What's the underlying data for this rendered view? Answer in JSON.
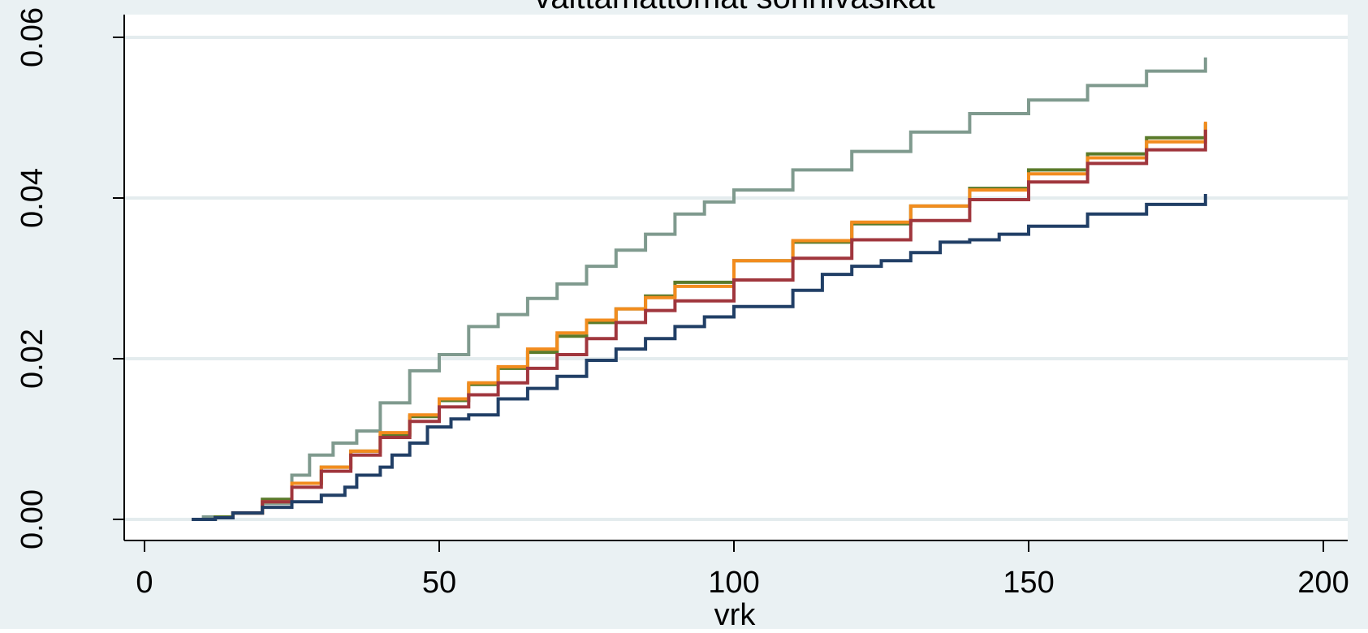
{
  "chart_data": {
    "type": "line",
    "title": "välttämättömät sonhivasikat",
    "xlabel": "vrk",
    "ylabel": "",
    "xlim": [
      0,
      200
    ],
    "ylim": [
      0,
      0.06
    ],
    "xticks": [
      0,
      50,
      100,
      150,
      200
    ],
    "xtick_labels": [
      "0",
      "50",
      "100",
      "150",
      "200"
    ],
    "yticks": [
      0,
      0.02,
      0.04,
      0.06
    ],
    "ytick_labels": [
      "0.00",
      "0.02",
      "0.04",
      "0.06"
    ],
    "grid": "horizontal",
    "legend": "none",
    "colors": {
      "outer_background": "#eaf1f3",
      "plot_background": "#ffffff",
      "grid": "#e4ecee",
      "axis": "#000000"
    },
    "series": [
      {
        "color": "#7f9a8e",
        "points": [
          [
            8,
            0
          ],
          [
            10,
            0.0003
          ],
          [
            15,
            0.0008
          ],
          [
            20,
            0.002
          ],
          [
            25,
            0.0055
          ],
          [
            28,
            0.008
          ],
          [
            32,
            0.0095
          ],
          [
            36,
            0.011
          ],
          [
            40,
            0.0145
          ],
          [
            45,
            0.0185
          ],
          [
            50,
            0.0205
          ],
          [
            55,
            0.024
          ],
          [
            60,
            0.0255
          ],
          [
            65,
            0.0275
          ],
          [
            70,
            0.0293
          ],
          [
            75,
            0.0315
          ],
          [
            80,
            0.0335
          ],
          [
            85,
            0.0355
          ],
          [
            90,
            0.038
          ],
          [
            95,
            0.0395
          ],
          [
            100,
            0.041
          ],
          [
            110,
            0.0435
          ],
          [
            120,
            0.0458
          ],
          [
            130,
            0.0482
          ],
          [
            140,
            0.0505
          ],
          [
            150,
            0.0522
          ],
          [
            160,
            0.054
          ],
          [
            170,
            0.0558
          ],
          [
            180,
            0.0575
          ]
        ]
      },
      {
        "color": "#5a7a2a",
        "points": [
          [
            8,
            0
          ],
          [
            12,
            0.0003
          ],
          [
            15,
            0.0008
          ],
          [
            20,
            0.0025
          ],
          [
            25,
            0.0045
          ],
          [
            30,
            0.0065
          ],
          [
            35,
            0.0085
          ],
          [
            40,
            0.0105
          ],
          [
            45,
            0.0128
          ],
          [
            50,
            0.0148
          ],
          [
            55,
            0.0168
          ],
          [
            60,
            0.0188
          ],
          [
            65,
            0.0208
          ],
          [
            70,
            0.0228
          ],
          [
            75,
            0.0245
          ],
          [
            80,
            0.0262
          ],
          [
            85,
            0.0278
          ],
          [
            90,
            0.0295
          ],
          [
            100,
            0.0322
          ],
          [
            110,
            0.0345
          ],
          [
            120,
            0.0368
          ],
          [
            130,
            0.039
          ],
          [
            140,
            0.0412
          ],
          [
            150,
            0.0435
          ],
          [
            160,
            0.0455
          ],
          [
            170,
            0.0475
          ],
          [
            180,
            0.0493
          ]
        ]
      },
      {
        "color": "#f28c1e",
        "points": [
          [
            8,
            0
          ],
          [
            12,
            0.0002
          ],
          [
            15,
            0.0008
          ],
          [
            20,
            0.0022
          ],
          [
            25,
            0.0045
          ],
          [
            30,
            0.0065
          ],
          [
            35,
            0.0085
          ],
          [
            40,
            0.0108
          ],
          [
            45,
            0.013
          ],
          [
            50,
            0.015
          ],
          [
            55,
            0.017
          ],
          [
            60,
            0.019
          ],
          [
            65,
            0.0212
          ],
          [
            70,
            0.0232
          ],
          [
            75,
            0.0248
          ],
          [
            80,
            0.0262
          ],
          [
            85,
            0.0276
          ],
          [
            90,
            0.029
          ],
          [
            100,
            0.0322
          ],
          [
            110,
            0.0347
          ],
          [
            120,
            0.037
          ],
          [
            130,
            0.039
          ],
          [
            140,
            0.041
          ],
          [
            150,
            0.043
          ],
          [
            160,
            0.045
          ],
          [
            170,
            0.047
          ],
          [
            180,
            0.0495
          ]
        ]
      },
      {
        "color": "#a0363d",
        "points": [
          [
            8,
            0
          ],
          [
            12,
            0.0002
          ],
          [
            15,
            0.0008
          ],
          [
            20,
            0.0022
          ],
          [
            25,
            0.004
          ],
          [
            30,
            0.006
          ],
          [
            35,
            0.008
          ],
          [
            40,
            0.0102
          ],
          [
            45,
            0.0122
          ],
          [
            50,
            0.014
          ],
          [
            55,
            0.0155
          ],
          [
            60,
            0.017
          ],
          [
            65,
            0.0188
          ],
          [
            70,
            0.0205
          ],
          [
            75,
            0.0225
          ],
          [
            80,
            0.0245
          ],
          [
            85,
            0.026
          ],
          [
            90,
            0.0272
          ],
          [
            100,
            0.0298
          ],
          [
            110,
            0.0325
          ],
          [
            120,
            0.0348
          ],
          [
            130,
            0.0372
          ],
          [
            140,
            0.0398
          ],
          [
            150,
            0.042
          ],
          [
            160,
            0.0443
          ],
          [
            170,
            0.046
          ],
          [
            180,
            0.0485
          ]
        ]
      },
      {
        "color": "#213f66",
        "points": [
          [
            8,
            0
          ],
          [
            12,
            0.0002
          ],
          [
            15,
            0.0008
          ],
          [
            20,
            0.0015
          ],
          [
            25,
            0.0022
          ],
          [
            30,
            0.003
          ],
          [
            34,
            0.004
          ],
          [
            36,
            0.0055
          ],
          [
            40,
            0.0065
          ],
          [
            42,
            0.008
          ],
          [
            45,
            0.0095
          ],
          [
            48,
            0.0115
          ],
          [
            52,
            0.0125
          ],
          [
            55,
            0.013
          ],
          [
            60,
            0.015
          ],
          [
            65,
            0.0163
          ],
          [
            70,
            0.0178
          ],
          [
            75,
            0.0198
          ],
          [
            80,
            0.0212
          ],
          [
            85,
            0.0225
          ],
          [
            90,
            0.024
          ],
          [
            95,
            0.0252
          ],
          [
            100,
            0.0265
          ],
          [
            110,
            0.0285
          ],
          [
            115,
            0.0305
          ],
          [
            120,
            0.0315
          ],
          [
            125,
            0.0322
          ],
          [
            130,
            0.0332
          ],
          [
            135,
            0.0345
          ],
          [
            140,
            0.0348
          ],
          [
            145,
            0.0355
          ],
          [
            150,
            0.0365
          ],
          [
            160,
            0.038
          ],
          [
            170,
            0.0392
          ],
          [
            180,
            0.0405
          ]
        ]
      }
    ]
  }
}
